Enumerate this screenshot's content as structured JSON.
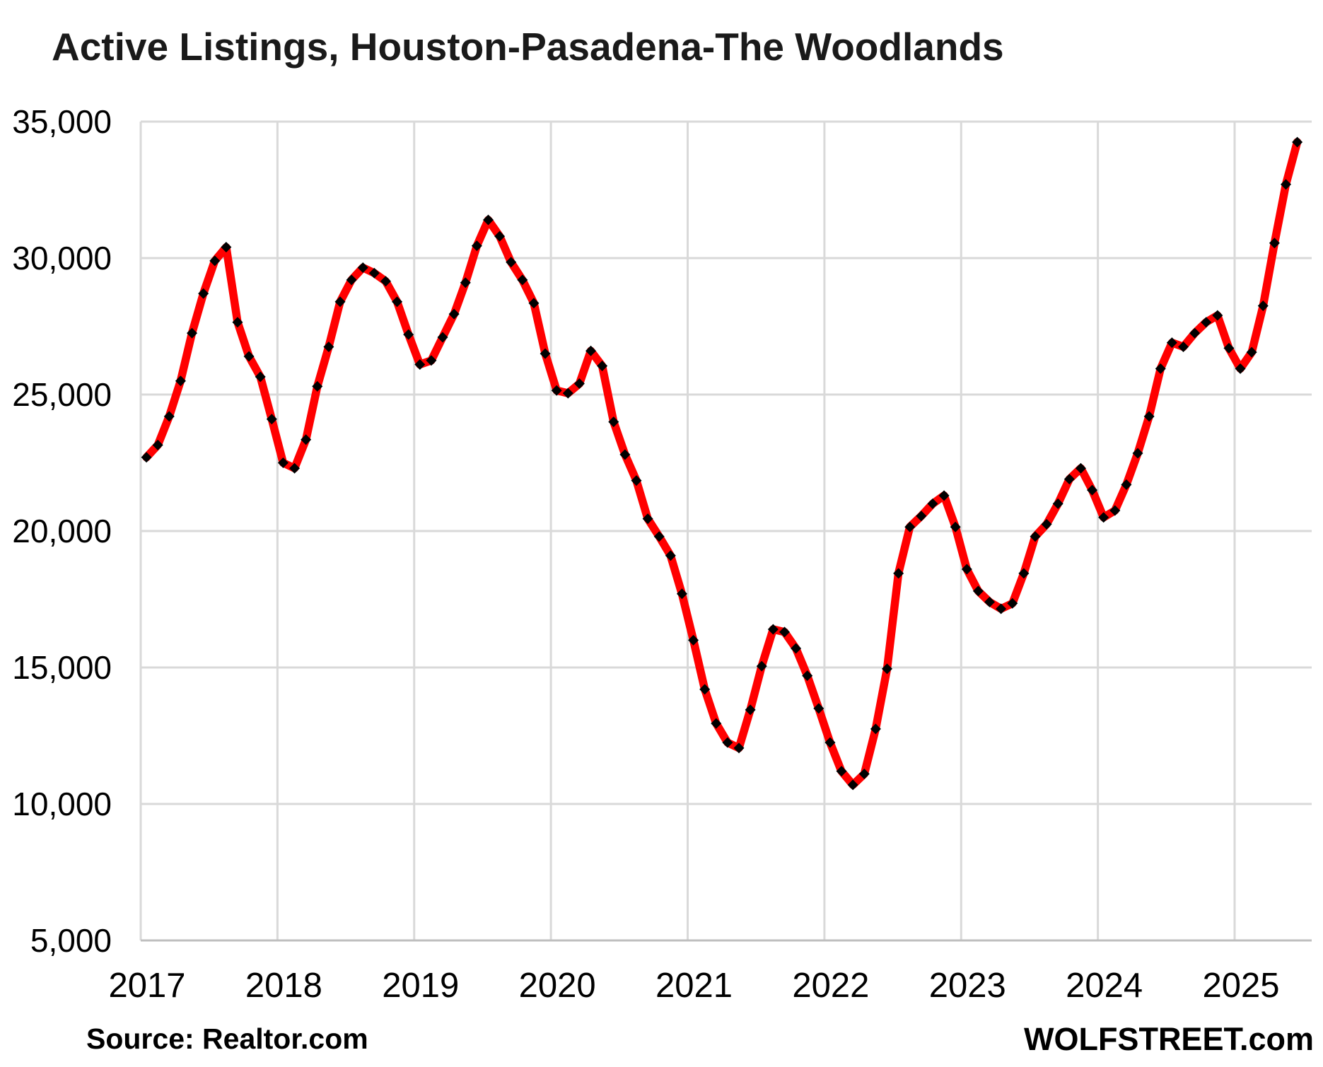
{
  "page": {
    "title": "Active Listings, Houston-Pasadena-The Woodlands",
    "source_note": "Source: Realtor.com",
    "brand_note": "WOLFSTREET.com"
  },
  "colors": {
    "line": "#ff0000",
    "marker": "#000000",
    "grid": "#d9d9d9",
    "axis": "#bfbfbf",
    "text": "#000000",
    "background": "#ffffff"
  },
  "chart_data": {
    "type": "line",
    "title": "Active Listings, Houston-Pasadena-The Woodlands",
    "xlabel": "",
    "ylabel": "",
    "ylim": [
      5000,
      35000
    ],
    "y_tick_step": 5000,
    "y_tick_labels": [
      "5,000",
      "10,000",
      "15,000",
      "20,000",
      "25,000",
      "30,000",
      "35,000"
    ],
    "x_tick_labels": [
      "2017",
      "2018",
      "2019",
      "2020",
      "2021",
      "2022",
      "2023",
      "2024",
      "2025"
    ],
    "grid": true,
    "legend": "none",
    "marker_shape": "diamond",
    "frequency": "monthly",
    "months": [
      "2017-01",
      "2017-02",
      "2017-03",
      "2017-04",
      "2017-05",
      "2017-06",
      "2017-07",
      "2017-08",
      "2017-09",
      "2017-10",
      "2017-11",
      "2017-12",
      "2018-01",
      "2018-02",
      "2018-03",
      "2018-04",
      "2018-05",
      "2018-06",
      "2018-07",
      "2018-08",
      "2018-09",
      "2018-10",
      "2018-11",
      "2018-12",
      "2019-01",
      "2019-02",
      "2019-03",
      "2019-04",
      "2019-05",
      "2019-06",
      "2019-07",
      "2019-08",
      "2019-09",
      "2019-10",
      "2019-11",
      "2019-12",
      "2020-01",
      "2020-02",
      "2020-03",
      "2020-04",
      "2020-05",
      "2020-06",
      "2020-07",
      "2020-08",
      "2020-09",
      "2020-10",
      "2020-11",
      "2020-12",
      "2021-01",
      "2021-02",
      "2021-03",
      "2021-04",
      "2021-05",
      "2021-06",
      "2021-07",
      "2021-08",
      "2021-09",
      "2021-10",
      "2021-11",
      "2021-12",
      "2022-01",
      "2022-02",
      "2022-03",
      "2022-04",
      "2022-05",
      "2022-06",
      "2022-07",
      "2022-08",
      "2022-09",
      "2022-10",
      "2022-11",
      "2022-12",
      "2023-01",
      "2023-02",
      "2023-03",
      "2023-04",
      "2023-05",
      "2023-06",
      "2023-07",
      "2023-08",
      "2023-09",
      "2023-10",
      "2023-11",
      "2023-12",
      "2024-01",
      "2024-02",
      "2024-03",
      "2024-04",
      "2024-05",
      "2024-06",
      "2024-07",
      "2024-08",
      "2024-09",
      "2024-10",
      "2024-11",
      "2024-12",
      "2025-01",
      "2025-02",
      "2025-03",
      "2025-04",
      "2025-05",
      "2025-06"
    ],
    "values": [
      22700,
      23150,
      24200,
      25500,
      27250,
      28700,
      29900,
      30400,
      27650,
      26400,
      25650,
      24100,
      22500,
      22300,
      23350,
      25300,
      26750,
      28400,
      29200,
      29650,
      29450,
      29150,
      28400,
      27200,
      26100,
      26250,
      27100,
      27950,
      29100,
      30450,
      31400,
      30800,
      29850,
      29200,
      28350,
      26500,
      25150,
      25050,
      25400,
      26600,
      26050,
      24000,
      22800,
      21850,
      20450,
      19800,
      19100,
      17700,
      16000,
      14200,
      12950,
      12250,
      12050,
      13450,
      15050,
      16400,
      16300,
      15700,
      14700,
      13500,
      12250,
      11200,
      10700,
      11100,
      12750,
      14950,
      18450,
      20150,
      20550,
      21000,
      21300,
      20150,
      18600,
      17800,
      17400,
      17150,
      17350,
      18450,
      19800,
      20250,
      21000,
      21900,
      22300,
      21500,
      20500,
      20750,
      21700,
      22850,
      24200,
      25950,
      26900,
      26750,
      27250,
      27650,
      27900,
      26700,
      25950,
      26550,
      28250,
      30550,
      32700,
      34250
    ]
  }
}
